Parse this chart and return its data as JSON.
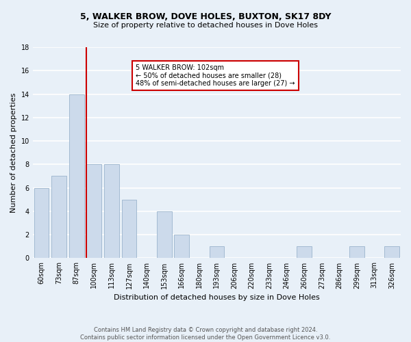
{
  "title": "5, WALKER BROW, DOVE HOLES, BUXTON, SK17 8DY",
  "subtitle": "Size of property relative to detached houses in Dove Holes",
  "xlabel": "Distribution of detached houses by size in Dove Holes",
  "ylabel": "Number of detached properties",
  "footnote1": "Contains HM Land Registry data © Crown copyright and database right 2024.",
  "footnote2": "Contains public sector information licensed under the Open Government Licence v3.0.",
  "categories": [
    "60sqm",
    "73sqm",
    "87sqm",
    "100sqm",
    "113sqm",
    "127sqm",
    "140sqm",
    "153sqm",
    "166sqm",
    "180sqm",
    "193sqm",
    "206sqm",
    "220sqm",
    "233sqm",
    "246sqm",
    "260sqm",
    "273sqm",
    "286sqm",
    "299sqm",
    "313sqm",
    "326sqm"
  ],
  "values": [
    6,
    7,
    14,
    8,
    8,
    5,
    0,
    4,
    2,
    0,
    1,
    0,
    0,
    0,
    0,
    1,
    0,
    0,
    1,
    0,
    1
  ],
  "bar_color": "#ccdaeb",
  "bar_edge_color": "#9ab4cc",
  "background_color": "#e8f0f8",
  "grid_color": "#ffffff",
  "vline_color": "#cc0000",
  "annotation_text": "5 WALKER BROW: 102sqm\n← 50% of detached houses are smaller (28)\n48% of semi-detached houses are larger (27) →",
  "annotation_box_color": "#ffffff",
  "annotation_box_edge": "#cc0000",
  "ylim": [
    0,
    18
  ],
  "yticks": [
    0,
    2,
    4,
    6,
    8,
    10,
    12,
    14,
    16,
    18
  ],
  "title_fontsize": 9,
  "subtitle_fontsize": 8,
  "xlabel_fontsize": 8,
  "ylabel_fontsize": 8,
  "tick_fontsize": 7,
  "annotation_fontsize": 7,
  "footnote_fontsize": 6
}
